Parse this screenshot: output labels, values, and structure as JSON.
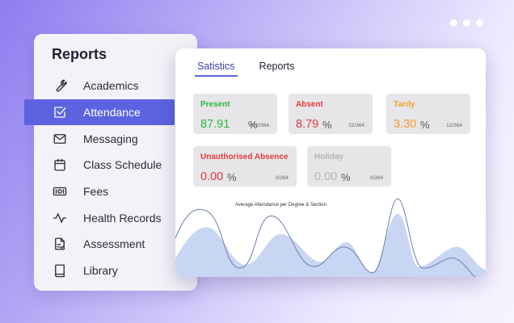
{
  "sidebar": {
    "title": "Reports",
    "items": [
      {
        "label": "Academics",
        "icon": "wrench-icon",
        "active": false
      },
      {
        "label": "Attendance",
        "icon": "checkbox-icon",
        "active": true
      },
      {
        "label": "Messaging",
        "icon": "envelope-icon",
        "active": false
      },
      {
        "label": "Class Schedule",
        "icon": "calendar-icon",
        "active": false
      },
      {
        "label": "Fees",
        "icon": "money-icon",
        "active": false
      },
      {
        "label": "Health Records",
        "icon": "pulse-icon",
        "active": false
      },
      {
        "label": "Assessment",
        "icon": "clipboard-icon",
        "active": false
      },
      {
        "label": "Library",
        "icon": "book-icon",
        "active": false
      }
    ]
  },
  "panel": {
    "tabs": [
      {
        "label": "Satistics",
        "active": true
      },
      {
        "label": "Reports",
        "active": false
      }
    ],
    "stats": [
      {
        "title": "Present",
        "value": "87.91",
        "unit": "%",
        "count": "320/364",
        "color": "#2db83d"
      },
      {
        "title": "Absent",
        "value": "8.79",
        "unit": "%",
        "count": "32/364",
        "color": "#e23b3b"
      },
      {
        "title": "Tardy",
        "value": "3.30",
        "unit": "%",
        "count": "12/364",
        "color": "#f39c2b"
      },
      {
        "title": "Unauthorised Absence",
        "value": "0.00",
        "unit": "%",
        "count": "0/364",
        "color": "#e23b3b"
      },
      {
        "title": "Holiday",
        "value": "0.00",
        "unit": "%",
        "count": "0/364",
        "color": "#b3b3b3"
      }
    ],
    "chart_title": "Average Attendance per Degree & Section"
  },
  "colors": {
    "accent": "#5c63e0",
    "area_fill": "#c7d6f2",
    "line": "#6c7fa8"
  }
}
